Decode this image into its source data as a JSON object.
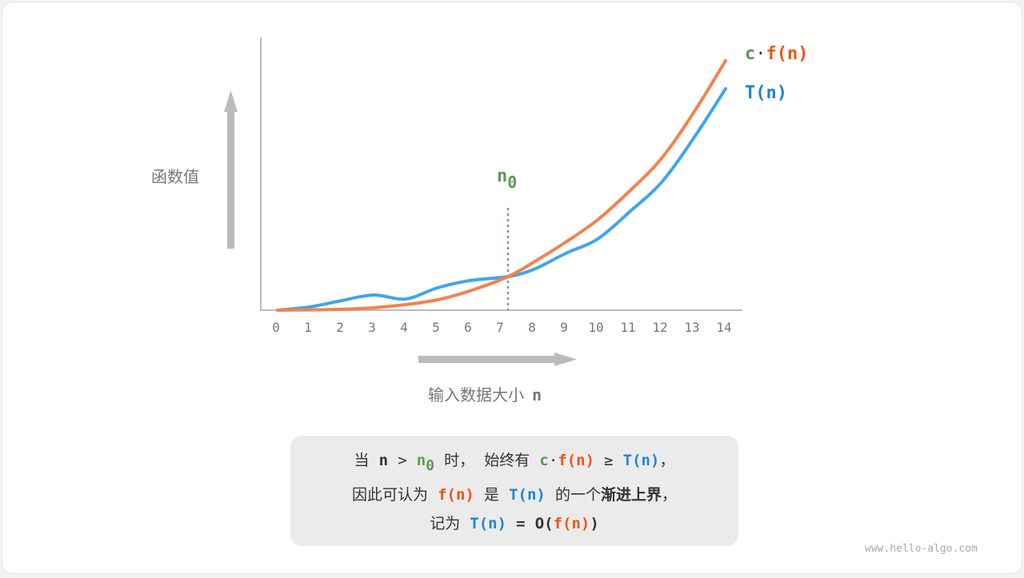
{
  "diagram": {
    "y_axis_label": "函数值",
    "x_axis_label": "输入数据大小",
    "x_axis_var": "n",
    "x_ticks": [
      "0",
      "1",
      "2",
      "3",
      "4",
      "5",
      "6",
      "7",
      "8",
      "9",
      "10",
      "11",
      "12",
      "13",
      "14"
    ],
    "n0_label": {
      "base": "n",
      "sub": "0"
    },
    "legend": {
      "c": "c",
      "dot": "·",
      "f": "f(n)",
      "t": "T(n)"
    },
    "colors": {
      "cf": "#f5814f",
      "T": "#42a5ea",
      "n0": "#5a9a50",
      "axis": "#bbbbbb"
    }
  },
  "caption": {
    "line1": [
      "当",
      "n",
      ">",
      "n",
      "0",
      "时，",
      "始终有",
      "c",
      "·",
      "f(n)",
      "≥",
      "T(n)",
      "，"
    ],
    "line2": [
      "因此可认为",
      "f(n)",
      "是",
      "T(n)",
      "的一个",
      "渐进上界",
      "，"
    ],
    "line3": [
      "记为",
      "T(n)",
      "=",
      "O(",
      "f(n)",
      ")"
    ]
  },
  "watermark": "www.hello-algo.com"
}
